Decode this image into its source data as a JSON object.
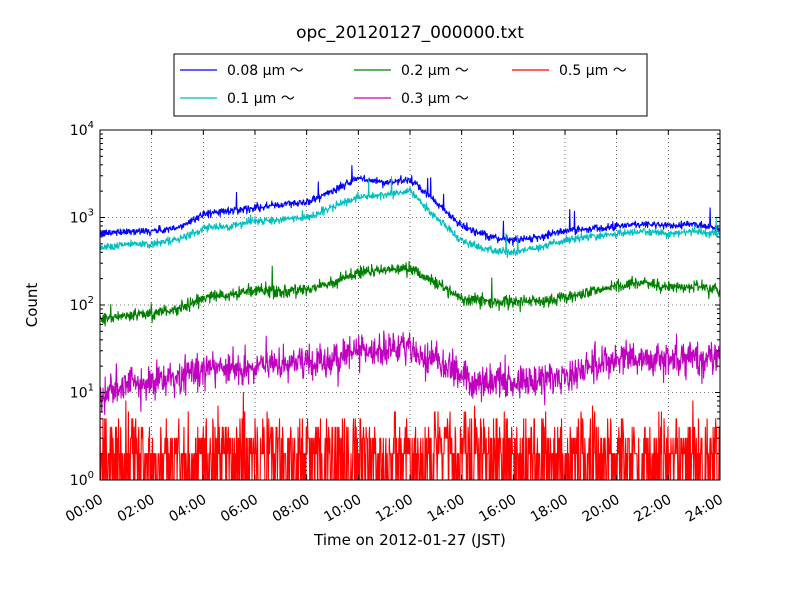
{
  "chart_data": {
    "type": "line",
    "title": "opc_20120127_000000.txt",
    "xlabel": "Time on 2012-01-27 (JST)",
    "ylabel": "Count",
    "yscale": "log",
    "ylim": [
      1,
      10000
    ],
    "xlim": [
      "00:00",
      "24:00"
    ],
    "x_tick_labels": [
      "00:00",
      "02:00",
      "04:00",
      "06:00",
      "08:00",
      "10:00",
      "12:00",
      "14:00",
      "16:00",
      "18:00",
      "20:00",
      "22:00",
      "24:00"
    ],
    "y_tick_labels": [
      {
        "base": "10",
        "exp": "0",
        "value": 1
      },
      {
        "base": "10",
        "exp": "1",
        "value": 10
      },
      {
        "base": "10",
        "exp": "2",
        "value": 100
      },
      {
        "base": "10",
        "exp": "3",
        "value": 1000
      },
      {
        "base": "10",
        "exp": "4",
        "value": 10000
      }
    ],
    "grid": true,
    "legend_placement": "top-center, above plot",
    "x_hours": [
      0,
      1,
      2,
      3,
      4,
      5,
      6,
      7,
      8,
      9,
      10,
      11,
      12,
      13,
      14,
      15,
      16,
      17,
      18,
      19,
      20,
      21,
      22,
      23,
      24
    ],
    "series": [
      {
        "name": "0.08 μm ～",
        "color": "#0000ff",
        "noise": 0.05,
        "values": [
          650,
          700,
          700,
          750,
          1100,
          1200,
          1300,
          1400,
          1500,
          2000,
          2800,
          2500,
          2700,
          1500,
          800,
          600,
          550,
          600,
          700,
          750,
          800,
          850,
          800,
          850,
          750
        ]
      },
      {
        "name": "0.1 μm ～",
        "color": "#00bfbf",
        "noise": 0.05,
        "values": [
          450,
          500,
          500,
          550,
          750,
          800,
          900,
          950,
          1000,
          1300,
          1700,
          1800,
          2000,
          1000,
          550,
          420,
          400,
          450,
          550,
          600,
          650,
          700,
          650,
          700,
          650
        ]
      },
      {
        "name": "0.2 μm ～",
        "color": "#008000",
        "noise": 0.08,
        "values": [
          70,
          75,
          80,
          90,
          120,
          130,
          150,
          140,
          150,
          180,
          240,
          250,
          260,
          180,
          120,
          110,
          110,
          110,
          120,
          140,
          170,
          180,
          160,
          160,
          150
        ]
      },
      {
        "name": "0.3 μm ～",
        "color": "#bf00bf",
        "noise": 0.22,
        "values": [
          10,
          12,
          14,
          15,
          18,
          19,
          20,
          22,
          22,
          25,
          30,
          32,
          32,
          22,
          15,
          13,
          13,
          14,
          15,
          20,
          25,
          25,
          23,
          25,
          25
        ]
      },
      {
        "name": "0.5 μm ～",
        "color": "#ff0000",
        "noise": 0.0,
        "values": [
          2,
          2,
          2,
          2,
          2,
          2,
          2,
          2,
          2,
          2,
          2,
          2,
          2,
          2,
          2,
          2,
          2,
          2,
          2,
          2,
          2,
          2,
          2,
          2,
          2
        ]
      }
    ]
  }
}
